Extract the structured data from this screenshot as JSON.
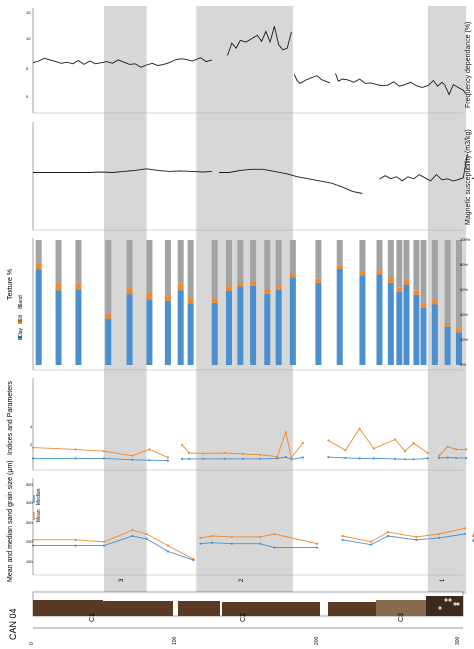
{
  "figure": {
    "core_label": "CAN 04",
    "units": [
      "C1",
      "C2",
      "C3"
    ],
    "zones": [
      "3",
      "2",
      "1"
    ],
    "depth_ticks": [
      0,
      100,
      200,
      300
    ]
  },
  "colors": {
    "band": "#d7d7d7",
    "line": "#1a1a1a",
    "clay": "#4a8fd0",
    "silt": "#ee8a2d",
    "sand": "#a3a3a3",
    "core_dark": "#5a3a22",
    "core_mid": "#8a6a4c"
  },
  "bands": [
    {
      "depth_start": 50,
      "depth_end": 80
    },
    {
      "depth_start": 115,
      "depth_end": 183
    },
    {
      "depth_start": 278,
      "depth_end": 305
    }
  ],
  "chart_data": [
    {
      "type": "line",
      "ylabel": "Frequency dependance (%)",
      "y_tick_labels": [
        "15",
        "10",
        "5",
        "0"
      ],
      "series": [
        {
          "name": "",
          "segments": [
            {
              "x": [
                0,
                4,
                8,
                12,
                16,
                20,
                24,
                28,
                32,
                36,
                40,
                44,
                48,
                52,
                56,
                60,
                64,
                68,
                72,
                76,
                80,
                84,
                88,
                92,
                96,
                100,
                104,
                108,
                112,
                118,
                122,
                126
              ],
              "y": [
                6.3,
                6.6,
                7.1,
                6.8,
                6.5,
                6.2,
                6.4,
                6.1,
                6.7,
                6.0,
                6.6,
                6.1,
                6.3,
                6.5,
                6.2,
                6.8,
                6.4,
                6.0,
                6.1,
                5.5,
                5.9,
                6.2,
                5.8,
                6.0,
                6.3,
                6.8,
                7.0,
                6.9,
                6.6,
                7.2,
                6.5,
                6.8
              ]
            },
            {
              "x": [
                137,
                140,
                143,
                146,
                150,
                154,
                158,
                161,
                164,
                167,
                170,
                173,
                176,
                179,
                182
              ],
              "y": [
                7.6,
                9.8,
                8.9,
                10.3,
                10.0,
                10.6,
                11.2,
                10.1,
                11.9,
                10.0,
                12.8,
                9.5,
                8.6,
                8.9,
                11.8
              ]
            },
            {
              "x": [
                184,
                186,
                188,
                192,
                196,
                200,
                203,
                206,
                209
              ],
              "y": [
                4.2,
                3.1,
                2.6,
                3.2,
                3.6,
                4.0,
                3.3,
                3.0,
                2.7
              ]
            },
            {
              "x": [
                213,
                215,
                218,
                222,
                226,
                230,
                234,
                238,
                242,
                246,
                250,
                254,
                258,
                262,
                266,
                270,
                274,
                278,
                282,
                285,
                288,
                290,
                293,
                296,
                300,
                303,
                305
              ],
              "y": [
                4.4,
                3.0,
                3.4,
                3.2,
                2.8,
                3.4,
                2.6,
                2.7,
                2.4,
                2.2,
                2.3,
                2.9,
                2.1,
                2.4,
                2.8,
                2.2,
                1.9,
                2.2,
                3.1,
                2.1,
                2.8,
                2.3,
                0.6,
                2.4,
                1.8,
                1.4,
                0.7
              ]
            }
          ]
        }
      ]
    },
    {
      "type": "line",
      "ylabel": "Magnetic susceptibility (m3/kg)",
      "series": [
        {
          "name": "",
          "segments": [
            {
              "x": [
                0,
                8,
                16,
                24,
                32,
                40,
                48,
                56,
                64,
                72,
                80,
                88,
                96,
                104,
                112,
                120,
                126
              ],
              "y": [
                5.0,
                5.0,
                5.0,
                5.0,
                5.0,
                5.0,
                5.05,
                5.0,
                5.1,
                5.2,
                5.35,
                5.2,
                5.1,
                5.15,
                5.1,
                5.05,
                5.1
              ]
            },
            {
              "x": [
                131,
                138,
                146,
                154,
                162,
                170,
                178,
                186,
                194,
                202,
                210,
                218,
                225,
                232
              ],
              "y": [
                5.0,
                5.0,
                5.2,
                5.3,
                5.3,
                5.1,
                4.9,
                4.6,
                4.4,
                4.2,
                4.0,
                3.6,
                3.2,
                3.0
              ]
            },
            {
              "x": [
                244,
                248,
                252,
                256,
                260,
                264,
                268,
                272,
                276,
                280,
                284,
                288,
                292,
                296,
                299,
                303,
                306
              ],
              "y": [
                4.4,
                4.7,
                4.4,
                4.6,
                4.2,
                4.6,
                4.4,
                4.8,
                4.5,
                4.2,
                4.8,
                4.3,
                4.4,
                4.2,
                4.3,
                4.5,
                6.8
              ]
            },
            {
              "x": [
                309,
                313,
                317,
                321,
                325,
                329,
                333,
                337,
                341,
                345,
                349,
                352,
                355,
                358,
                361
              ],
              "y": [
                4.4,
                4.6,
                4.3,
                4.8,
                4.6,
                4.9,
                4.8,
                5.1,
                5.0,
                5.3,
                5.6,
                5.4,
                5.6,
                7.0,
                6.8
              ]
            }
          ]
        }
      ]
    },
    {
      "type": "bar",
      "stacked": true,
      "title": "Texture %",
      "y_tick_labels": [
        "0%",
        "20%",
        "40%",
        "60%",
        "80%",
        "100%"
      ],
      "legend": [
        "Clay",
        "Silt",
        "Sand"
      ],
      "samples": [
        {
          "depth": 4,
          "clay": 76.4,
          "silt": 4.8,
          "sand": 18.8
        },
        {
          "depth": 18,
          "clay": 59.8,
          "silt": 5.3,
          "sand": 34.9
        },
        {
          "depth": 32,
          "clay": 60.5,
          "silt": 4.4,
          "sand": 35.1
        },
        {
          "depth": 53,
          "clay": 37.1,
          "silt": 3.7,
          "sand": 59.2
        },
        {
          "depth": 68,
          "clay": 56.7,
          "silt": 4.8,
          "sand": 38.5
        },
        {
          "depth": 82,
          "clay": 52.5,
          "silt": 5.4,
          "sand": 42.1
        },
        {
          "depth": 95,
          "clay": 51.4,
          "silt": 4.8,
          "sand": 43.8
        },
        {
          "depth": 104,
          "clay": 59.8,
          "silt": 5.1,
          "sand": 35.1
        },
        {
          "depth": 111,
          "clay": 49.3,
          "silt": 4.2,
          "sand": 46.5
        },
        {
          "depth": 128,
          "clay": 49.7,
          "silt": 3.7,
          "sand": 46.6
        },
        {
          "depth": 138,
          "clay": 59.3,
          "silt": 3.7,
          "sand": 37.0
        },
        {
          "depth": 146,
          "clay": 62.8,
          "silt": 3.3,
          "sand": 33.9
        },
        {
          "depth": 155,
          "clay": 63.4,
          "silt": 3.6,
          "sand": 33.0
        },
        {
          "depth": 165,
          "clay": 56.9,
          "silt": 3.5,
          "sand": 39.6
        },
        {
          "depth": 173,
          "clay": 60.2,
          "silt": 3.1,
          "sand": 36.7
        },
        {
          "depth": 183,
          "clay": 70.1,
          "silt": 3.1,
          "sand": 26.8
        },
        {
          "depth": 201,
          "clay": 65.6,
          "silt": 3.4,
          "sand": 31.0
        },
        {
          "depth": 216,
          "clay": 76.8,
          "silt": 2.7,
          "sand": 20.5
        },
        {
          "depth": 232,
          "clay": 71.7,
          "silt": 3.8,
          "sand": 24.5
        },
        {
          "depth": 244,
          "clay": 72.5,
          "silt": 3.4,
          "sand": 24.1
        },
        {
          "depth": 252,
          "clay": 65.8,
          "silt": 3.8,
          "sand": 30.4
        },
        {
          "depth": 258,
          "clay": 58.6,
          "silt": 3.6,
          "sand": 37.8
        },
        {
          "depth": 263,
          "clay": 64.3,
          "silt": 4.2,
          "sand": 31.5
        },
        {
          "depth": 270,
          "clay": 56.2,
          "silt": 3.6,
          "sand": 40.2
        },
        {
          "depth": 275,
          "clay": 45.7,
          "silt": 3.2,
          "sand": 51.1
        },
        {
          "depth": 283,
          "clay": 48.4,
          "silt": 3.5,
          "sand": 48.1
        },
        {
          "depth": 292,
          "clay": 30.7,
          "silt": 2.9,
          "sand": 66.4
        },
        {
          "depth": 300,
          "clay": 26.2,
          "silt": 3.1,
          "sand": 70.7
        }
      ]
    },
    {
      "type": "line",
      "ylabel": "Indices and Parameters",
      "y_tick_labels": [
        "4",
        "2"
      ],
      "series": [
        {
          "name": "",
          "segments": [
            {
              "x": [
                0,
                30,
                50,
                70,
                82,
                95
              ],
              "y": [
                1.6,
                1.4,
                1.2,
                0.7,
                1.4,
                0.5
              ]
            },
            {
              "x": [
                105,
                110,
                120,
                135,
                148,
                160,
                172,
                178,
                182,
                190
              ],
              "y": [
                1.9,
                1.0,
                0.95,
                1.0,
                0.9,
                0.8,
                0.6,
                3.3,
                0.5,
                2.1
              ]
            },
            {
              "x": [
                208,
                220,
                230,
                240,
                255,
                262,
                268,
                278
              ],
              "y": [
                2.4,
                1.3,
                3.7,
                1.5,
                2.5,
                1.2,
                2.1,
                1.0
              ]
            },
            {
              "x": [
                286,
                292,
                298,
                305
              ],
              "y": [
                0.7,
                1.7,
                1.4,
                1.4
              ]
            }
          ]
        },
        {
          "name": "",
          "segments": [
            {
              "x": [
                0,
                30,
                50,
                70,
                82,
                95
              ],
              "y": [
                0.4,
                0.4,
                0.4,
                0.25,
                0.2,
                0.15
              ]
            },
            {
              "x": [
                105,
                110,
                120,
                135,
                148,
                160,
                172,
                178,
                182,
                190
              ],
              "y": [
                0.35,
                0.35,
                0.35,
                0.35,
                0.35,
                0.35,
                0.4,
                0.55,
                0.3,
                0.5
              ]
            },
            {
              "x": [
                208,
                220,
                230,
                240,
                255,
                262,
                268,
                278
              ],
              "y": [
                0.55,
                0.45,
                0.4,
                0.4,
                0.35,
                0.3,
                0.3,
                0.4
              ]
            },
            {
              "x": [
                286,
                292,
                298,
                305
              ],
              "y": [
                0.45,
                0.5,
                0.45,
                0.45
              ]
            }
          ]
        }
      ]
    },
    {
      "type": "line",
      "ylabel": "Mean and median sand grain size (µm)",
      "y_tick_labels": [
        "550",
        "450",
        "350",
        "250",
        "150"
      ],
      "legend_labels": [
        "Mean",
        "Median"
      ],
      "series": [
        {
          "name": "Mean",
          "segments": [
            {
              "x": [
                0,
                30,
                50,
                70,
                80,
                95,
                113
              ],
              "y": [
                270,
                270,
                260,
                320,
                300,
                240,
                170
              ]
            },
            {
              "x": [
                118,
                126,
                140,
                160,
                170,
                200
              ],
              "y": [
                280,
                290,
                285,
                285,
                300,
                250
              ]
            },
            {
              "x": [
                218,
                238,
                250,
                270,
                286,
                304
              ],
              "y": [
                290,
                260,
                310,
                285,
                300,
                330
              ]
            },
            {
              "x": [
                310,
                317,
                330
              ],
              "y": [
                290,
                490,
                480
              ]
            }
          ]
        },
        {
          "name": "Median",
          "segments": [
            {
              "x": [
                0,
                30,
                50,
                70,
                80,
                95,
                113
              ],
              "y": [
                240,
                240,
                240,
                290,
                275,
                210,
                165
              ]
            },
            {
              "x": [
                118,
                126,
                140,
                160,
                170,
                200
              ],
              "y": [
                250,
                255,
                250,
                250,
                230,
                230
              ]
            },
            {
              "x": [
                218,
                238,
                250,
                270,
                286,
                304
              ],
              "y": [
                270,
                245,
                290,
                270,
                280,
                300
              ]
            },
            {
              "x": [
                310,
                317,
                330
              ],
              "y": [
                265,
                390,
                410
              ]
            }
          ]
        }
      ]
    }
  ]
}
